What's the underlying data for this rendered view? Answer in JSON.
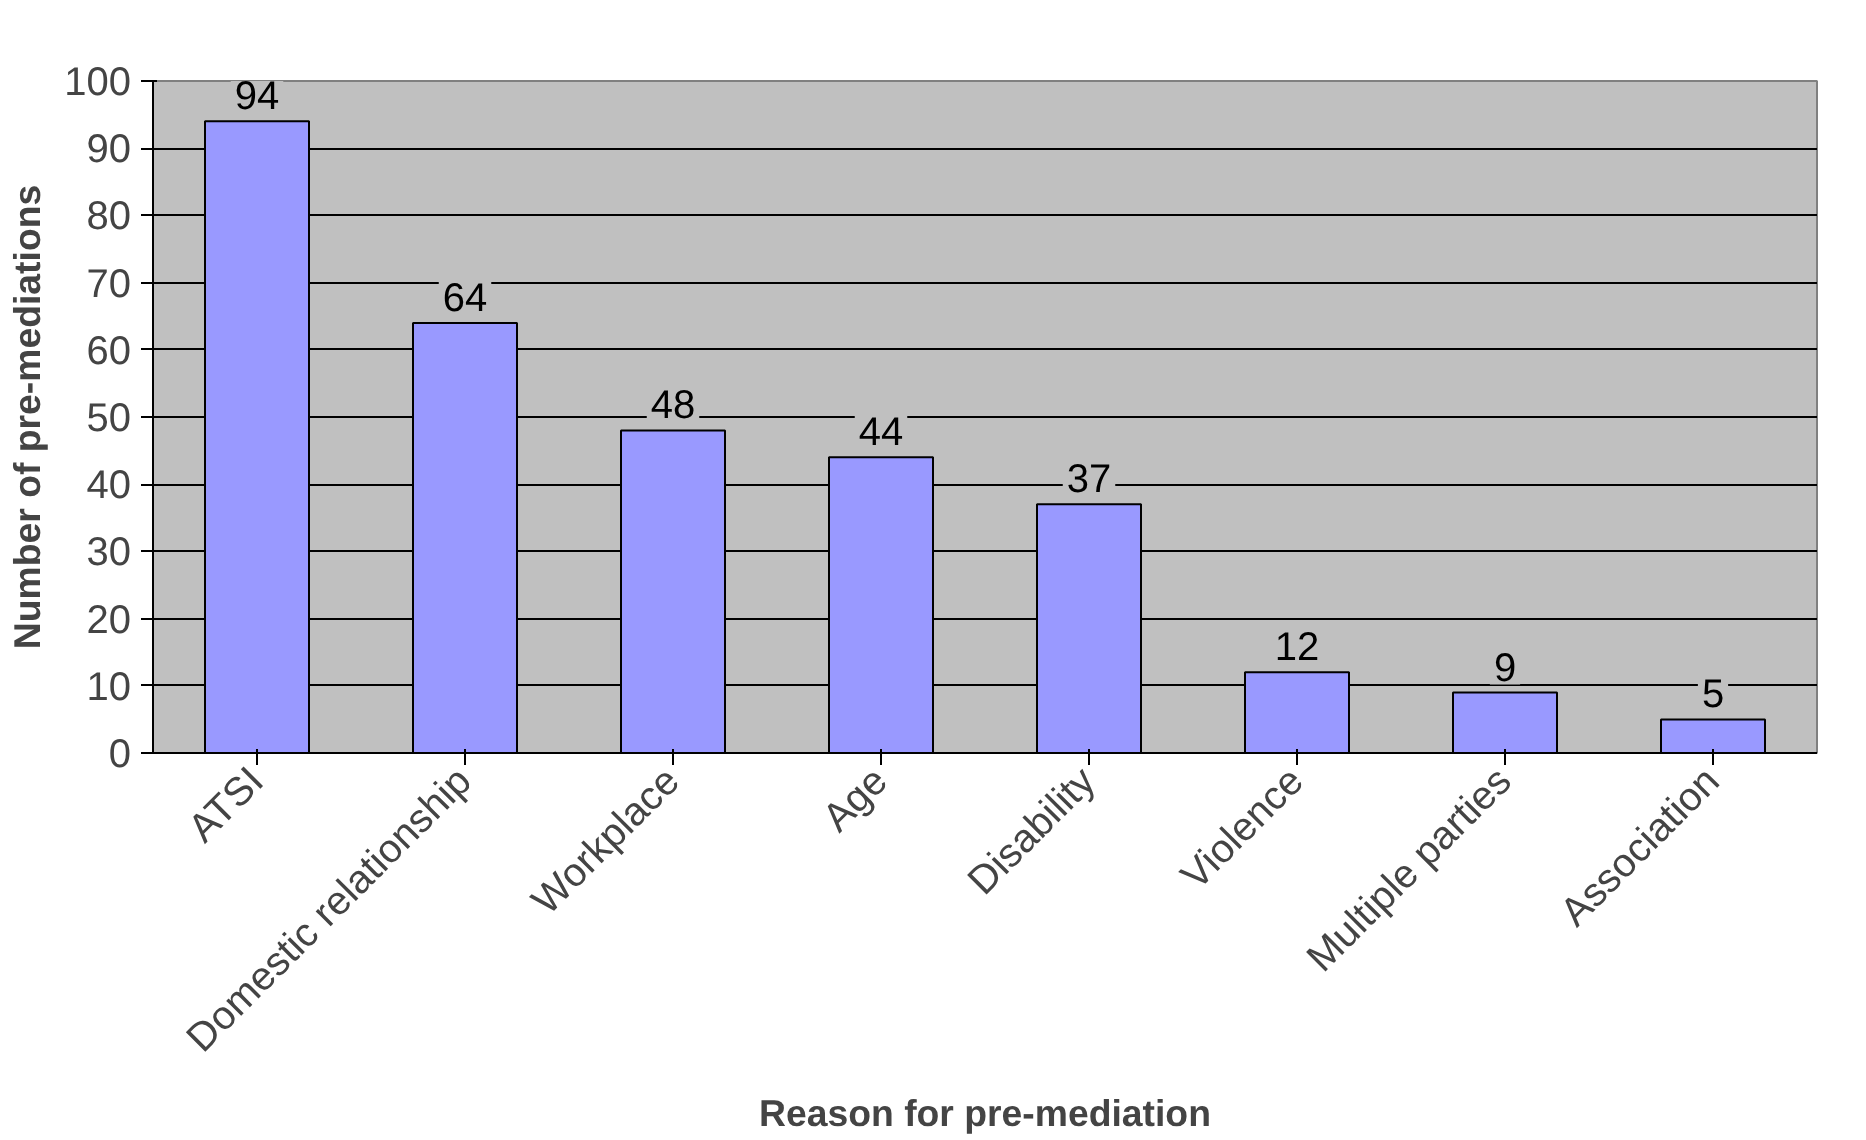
{
  "chart_data": {
    "type": "bar",
    "xlabel": "Reason for pre-mediation",
    "ylabel": "Number of pre-mediations",
    "categories": [
      "ATSI",
      "Domestic relationship",
      "Workplace",
      "Age",
      "Disability",
      "Violence",
      "Multiple parties",
      "Association"
    ],
    "values": [
      94,
      64,
      48,
      44,
      37,
      12,
      9,
      5
    ],
    "color": "#9999ff",
    "ylim": [
      0,
      100
    ],
    "yticks": [
      0,
      10,
      20,
      30,
      40,
      50,
      60,
      70,
      80,
      90,
      100
    ],
    "grid": "y",
    "data_labels": true
  }
}
